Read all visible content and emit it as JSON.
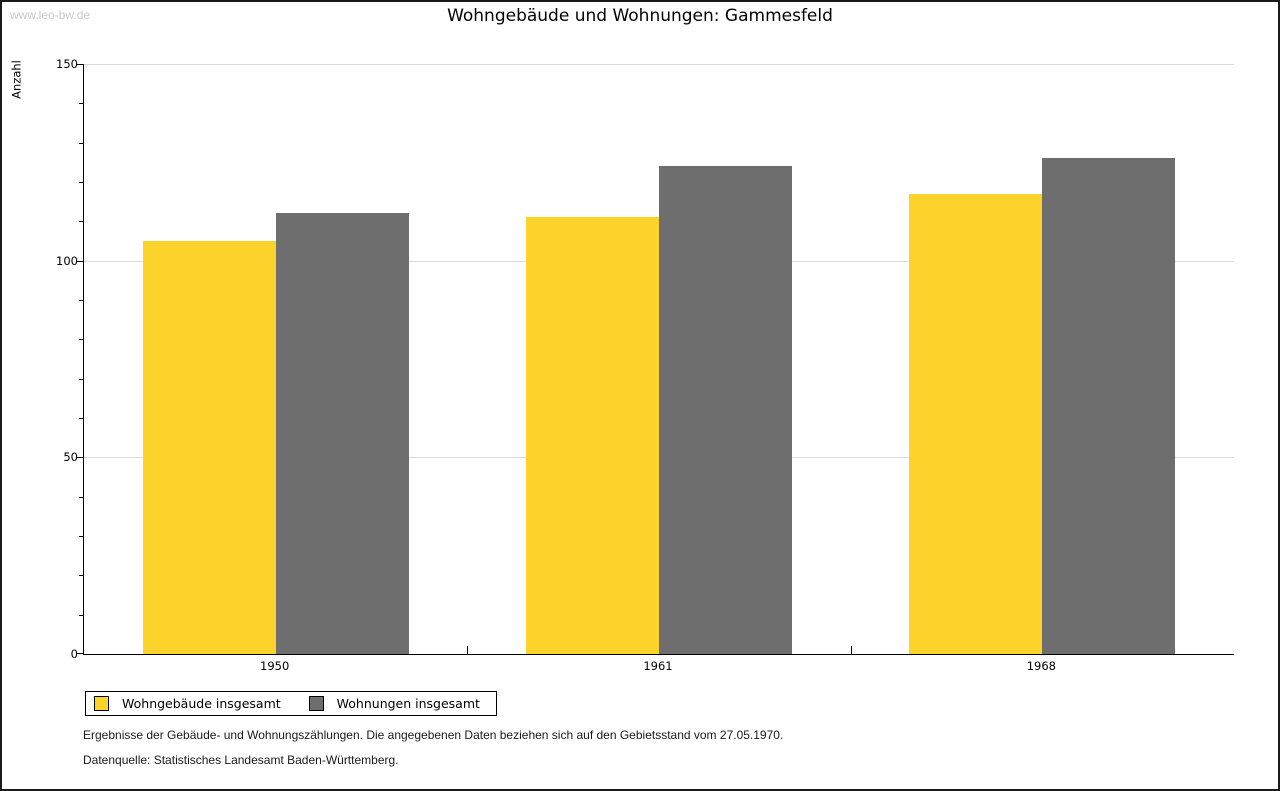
{
  "watermark": "www.leo-bw.de",
  "title": "Wohngebäude und Wohnungen: Gammesfeld",
  "chart_data": {
    "type": "bar",
    "title": "Wohngebäude und Wohnungen: Gammesfeld",
    "xlabel": "",
    "ylabel": "Anzahl",
    "categories": [
      "1950",
      "1961",
      "1968"
    ],
    "series": [
      {
        "name": "Wohngebäude insgesamt",
        "color": "#FCD32B",
        "values": [
          105,
          111,
          117
        ]
      },
      {
        "name": "Wohnungen insgesamt",
        "color": "#6E6E6E",
        "values": [
          112,
          124,
          126
        ]
      }
    ],
    "ylim": [
      0,
      150
    ],
    "yticks": [
      0,
      50,
      100,
      150
    ],
    "minor_tick_step": 10,
    "grid": true,
    "legend_position": "bottom-left"
  },
  "footnotes": {
    "line1": "Ergebnisse der Gebäude- und Wohnungszählungen. Die angegebenen Daten beziehen sich auf den Gebietsstand vom 27.05.1970.",
    "line2": "Datenquelle: Statistisches Landesamt Baden-Württemberg."
  },
  "colors": {
    "bar_yellow": "#FCD32B",
    "bar_gray": "#6E6E6E",
    "gridline": "#DBDBDB",
    "axis": "#000000",
    "watermark": "#C9C9C9",
    "background": "#FFFFFF",
    "frame_border": "#1A1A1A"
  }
}
